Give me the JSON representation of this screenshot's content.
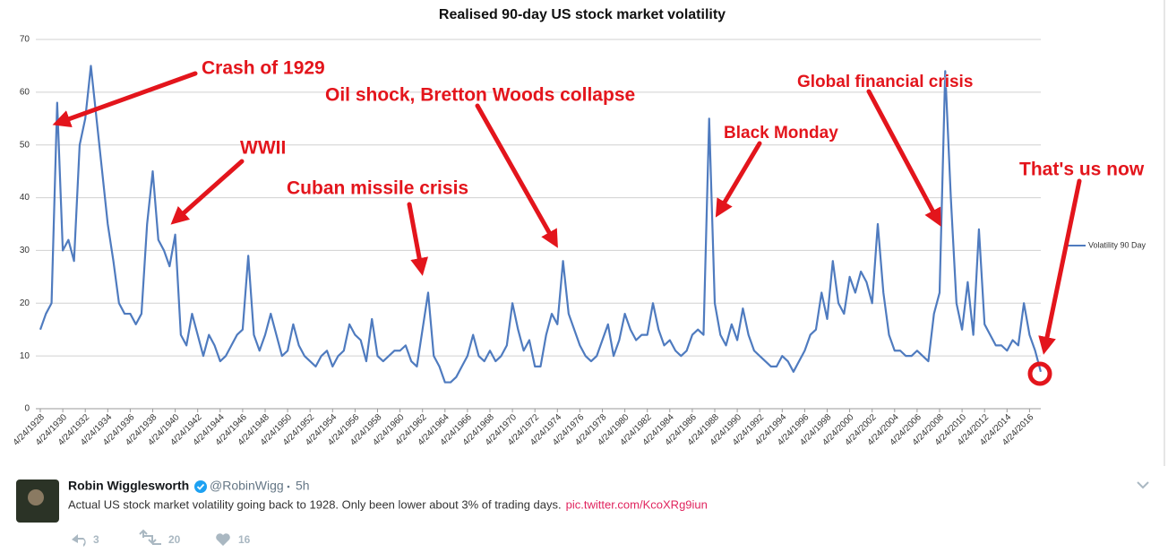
{
  "chart_data": {
    "type": "line",
    "title": "Realised 90-day US stock market volatility",
    "categories": [
      "4/24/1928",
      null,
      null,
      null,
      "4/24/1930",
      null,
      null,
      null,
      "4/24/1932",
      null,
      null,
      null,
      "4/24/1934",
      null,
      null,
      null,
      "4/24/1936",
      null,
      null,
      null,
      "4/24/1938",
      null,
      null,
      null,
      "4/24/1940",
      null,
      null,
      null,
      "4/24/1942",
      null,
      null,
      null,
      "4/24/1944",
      null,
      null,
      null,
      "4/24/1946",
      null,
      null,
      null,
      "4/24/1948",
      null,
      null,
      null,
      "4/24/1950",
      null,
      null,
      null,
      "4/24/1952",
      null,
      null,
      null,
      "4/24/1954",
      null,
      null,
      null,
      "4/24/1956",
      null,
      null,
      null,
      "4/24/1958",
      null,
      null,
      null,
      "4/24/1960",
      null,
      null,
      null,
      "4/24/1962",
      null,
      null,
      null,
      "4/24/1964",
      null,
      null,
      null,
      "4/24/1966",
      null,
      null,
      null,
      "4/24/1968",
      null,
      null,
      null,
      "4/24/1970",
      null,
      null,
      null,
      "4/24/1972",
      null,
      null,
      null,
      "4/24/1974",
      null,
      null,
      null,
      "4/24/1976",
      null,
      null,
      null,
      "4/24/1978",
      null,
      null,
      null,
      "4/24/1980",
      null,
      null,
      null,
      "4/24/1982",
      null,
      null,
      null,
      "4/24/1984",
      null,
      null,
      null,
      "4/24/1986",
      null,
      null,
      null,
      "4/24/1988",
      null,
      null,
      null,
      "4/24/1990",
      null,
      null,
      null,
      "4/24/1992",
      null,
      null,
      null,
      "4/24/1994",
      null,
      null,
      null,
      "4/24/1996",
      null,
      null,
      null,
      "4/24/1998",
      null,
      null,
      null,
      "4/24/2000",
      null,
      null,
      null,
      "4/24/2002",
      null,
      null,
      null,
      "4/24/2004",
      null,
      null,
      null,
      "4/24/2006",
      null,
      null,
      null,
      "4/24/2008",
      null,
      null,
      null,
      "4/24/2010",
      null,
      null,
      null,
      "4/24/2012",
      null,
      null,
      null,
      "4/24/2014",
      null,
      null,
      null,
      "4/24/2016",
      null,
      null
    ],
    "series": [
      {
        "name": "Volatility 90 Day",
        "color": "#4f7bbf",
        "values": [
          15,
          18,
          20,
          58,
          30,
          32,
          28,
          50,
          55,
          65,
          55,
          45,
          35,
          28,
          20,
          18,
          18,
          16,
          18,
          35,
          45,
          32,
          30,
          27,
          33,
          14,
          12,
          18,
          14,
          10,
          14,
          12,
          9,
          10,
          12,
          14,
          15,
          29,
          14,
          11,
          14,
          18,
          14,
          10,
          11,
          16,
          12,
          10,
          9,
          8,
          10,
          11,
          8,
          10,
          11,
          16,
          14,
          13,
          9,
          17,
          10,
          9,
          10,
          11,
          11,
          12,
          9,
          8,
          15,
          22,
          10,
          8,
          5,
          5,
          6,
          8,
          10,
          14,
          10,
          9,
          11,
          9,
          10,
          12,
          20,
          15,
          11,
          13,
          8,
          8,
          14,
          18,
          16,
          28,
          18,
          15,
          12,
          10,
          9,
          10,
          13,
          16,
          10,
          13,
          18,
          15,
          13,
          14,
          14,
          20,
          15,
          12,
          13,
          11,
          10,
          11,
          14,
          15,
          14,
          55,
          20,
          14,
          12,
          16,
          13,
          19,
          14,
          11,
          10,
          9,
          8,
          8,
          10,
          9,
          7,
          9,
          11,
          14,
          15,
          22,
          17,
          28,
          20,
          18,
          25,
          22,
          26,
          24,
          20,
          35,
          22,
          14,
          11,
          11,
          10,
          10,
          11,
          10,
          9,
          18,
          22,
          64,
          40,
          20,
          15,
          24,
          14,
          34,
          16,
          14,
          12,
          12,
          11,
          13,
          12,
          20,
          14,
          11,
          7
        ]
      }
    ],
    "ylim": [
      0,
      70
    ],
    "yticks": [
      0,
      10,
      20,
      30,
      40,
      50,
      60,
      70
    ],
    "grid": true,
    "legend": "right",
    "annotations": [
      "Crash of 1929",
      "Oil shock, Bretton Woods collapse",
      "WWII",
      "Cuban missile crisis",
      "Black Monday",
      "Global financial crisis",
      "That's us now"
    ]
  },
  "tweet": {
    "name": "Robin Wigglesworth",
    "handle": "@RobinWigg",
    "time": "5h",
    "text": "Actual US stock market volatility going back to 1928. Only been lower about 3% of trading days.",
    "link": "pic.twitter.com/KcoXRg9iun",
    "replies": 3,
    "retweets": 20,
    "likes": 16
  }
}
